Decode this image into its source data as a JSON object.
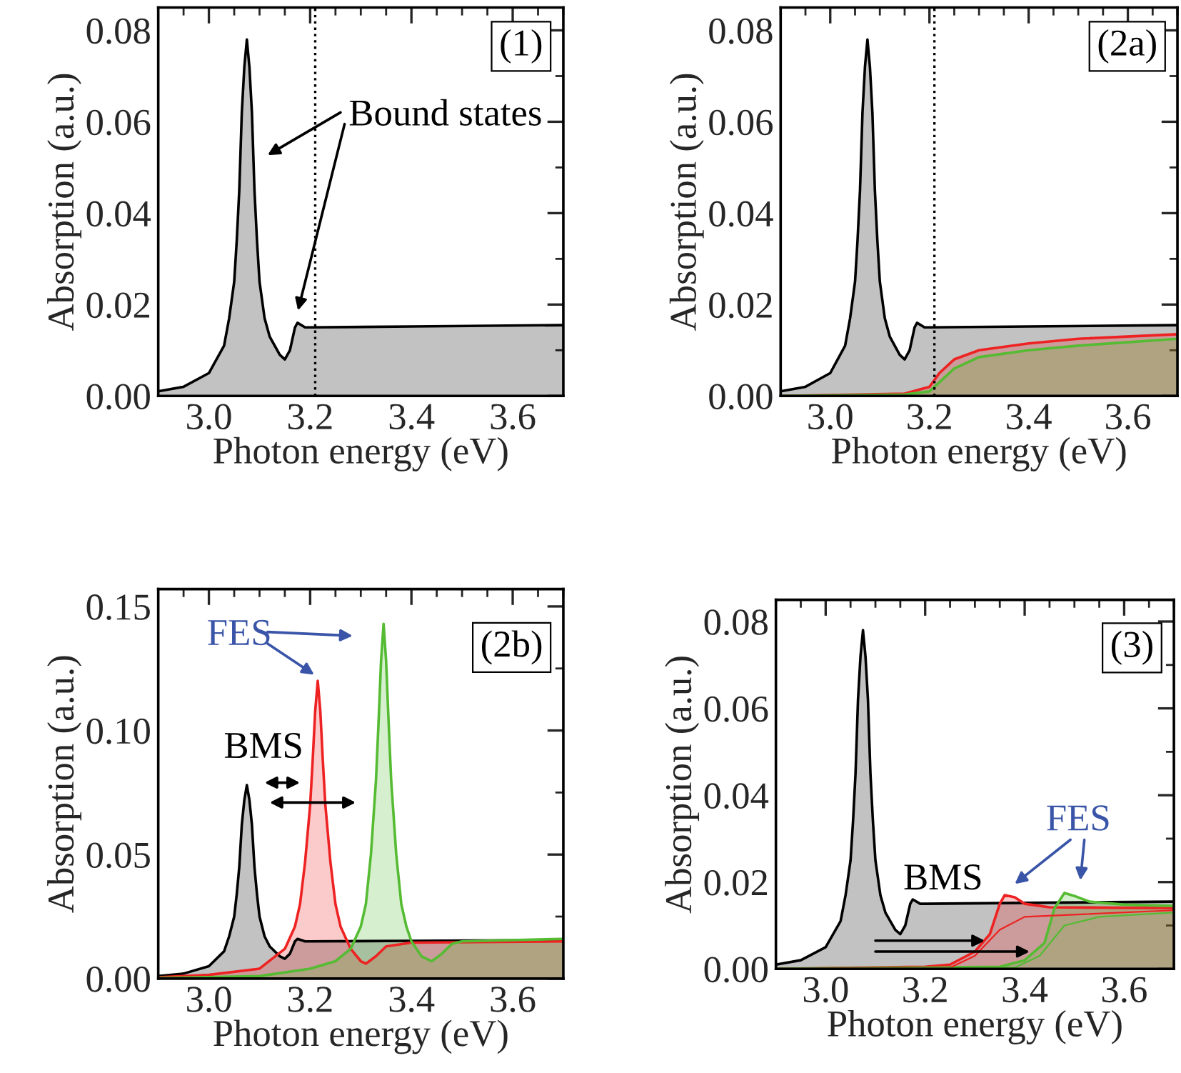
{
  "chart_data": [
    {
      "type": "area",
      "xlabel": "Photon energy (eV)",
      "ylabel": "Absorption (a.u.)",
      "xlim": [
        2.9,
        3.7
      ],
      "ylim": [
        0,
        0.085
      ],
      "xticks": [
        {
          "value": 3.0,
          "label": "3.0"
        },
        {
          "value": 3.2,
          "label": "3.2"
        },
        {
          "value": 3.4,
          "label": "3.4"
        },
        {
          "value": 3.6,
          "label": "3.6"
        }
      ],
      "yticks": [
        {
          "value": 0,
          "label": "0.00"
        },
        {
          "value": 0.02,
          "label": "0.02"
        },
        {
          "value": 0.04,
          "label": "0.04"
        },
        {
          "value": 0.06,
          "label": "0.06"
        },
        {
          "value": 0.08,
          "label": "0.08"
        }
      ],
      "grid": false,
      "legend": false,
      "series": [
        {
          "color": "#000000",
          "x": [
            2.9,
            2.95,
            3.0,
            3.03,
            3.04,
            3.05,
            3.055,
            3.06,
            3.065,
            3.07,
            3.075,
            3.08,
            3.085,
            3.09,
            3.095,
            3.1,
            3.11,
            3.12,
            3.14,
            3.15,
            3.16,
            3.17,
            3.175,
            3.19,
            3.2,
            3.4,
            3.7
          ],
          "values": [
            0.001,
            0.002,
            0.005,
            0.011,
            0.017,
            0.025,
            0.034,
            0.045,
            0.062,
            0.072,
            0.078,
            0.072,
            0.062,
            0.045,
            0.034,
            0.025,
            0.017,
            0.013,
            0.009,
            0.008,
            0.01,
            0.015,
            0.016,
            0.015,
            0.015,
            0.0152,
            0.0155
          ]
        }
      ],
      "ref_lines": [
        {
          "axis": "x",
          "value": 3.21,
          "line_style": "dotted",
          "color": "#000000"
        }
      ],
      "annotations": [
        "(1)",
        "Bound states"
      ]
    },
    {
      "type": "area",
      "xlabel": "Photon energy (eV)",
      "ylabel": "Absorption (a.u.)",
      "xlim": [
        2.9,
        3.7
      ],
      "ylim": [
        0,
        0.085
      ],
      "xticks": [
        {
          "value": 3.0,
          "label": "3.0"
        },
        {
          "value": 3.2,
          "label": "3.2"
        },
        {
          "value": 3.4,
          "label": "3.4"
        },
        {
          "value": 3.6,
          "label": "3.6"
        }
      ],
      "yticks": [
        {
          "value": 0,
          "label": "0.00"
        },
        {
          "value": 0.02,
          "label": "0.02"
        },
        {
          "value": 0.04,
          "label": "0.04"
        },
        {
          "value": 0.06,
          "label": "0.06"
        },
        {
          "value": 0.08,
          "label": "0.08"
        }
      ],
      "grid": false,
      "legend": false,
      "series": [
        {
          "color": "#000000",
          "x": [
            2.9,
            2.95,
            3.0,
            3.03,
            3.04,
            3.05,
            3.055,
            3.06,
            3.065,
            3.07,
            3.075,
            3.08,
            3.085,
            3.09,
            3.095,
            3.1,
            3.11,
            3.12,
            3.14,
            3.15,
            3.16,
            3.17,
            3.175,
            3.19,
            3.2,
            3.4,
            3.7
          ],
          "values": [
            0.001,
            0.002,
            0.005,
            0.011,
            0.017,
            0.025,
            0.034,
            0.045,
            0.062,
            0.072,
            0.078,
            0.072,
            0.062,
            0.045,
            0.034,
            0.025,
            0.017,
            0.013,
            0.009,
            0.008,
            0.01,
            0.015,
            0.016,
            0.015,
            0.015,
            0.0152,
            0.0155
          ]
        },
        {
          "color": "#ee2222",
          "x": [
            2.9,
            3.15,
            3.2,
            3.22,
            3.25,
            3.3,
            3.4,
            3.5,
            3.7
          ],
          "values": [
            0,
            0.0005,
            0.002,
            0.005,
            0.008,
            0.01,
            0.0115,
            0.0125,
            0.0135
          ]
        },
        {
          "color": "#55bb33",
          "x": [
            2.9,
            3.15,
            3.2,
            3.22,
            3.25,
            3.3,
            3.4,
            3.5,
            3.7
          ],
          "values": [
            0,
            0.0003,
            0.001,
            0.003,
            0.006,
            0.0085,
            0.01,
            0.011,
            0.0125
          ]
        }
      ],
      "ref_lines": [
        {
          "axis": "x",
          "value": 3.21,
          "line_style": "dotted",
          "color": "#000000"
        }
      ],
      "annotations": [
        "(2a)"
      ]
    },
    {
      "type": "area",
      "xlabel": "Photon energy (eV)",
      "ylabel": "Absorption (a.u.)",
      "xlim": [
        2.9,
        3.7
      ],
      "ylim": [
        0,
        0.157
      ],
      "xticks": [
        {
          "value": 3.0,
          "label": "3.0"
        },
        {
          "value": 3.2,
          "label": "3.2"
        },
        {
          "value": 3.4,
          "label": "3.4"
        },
        {
          "value": 3.6,
          "label": "3.6"
        }
      ],
      "yticks": [
        {
          "value": 0,
          "label": "0.00"
        },
        {
          "value": 0.05,
          "label": "0.05"
        },
        {
          "value": 0.1,
          "label": "0.10"
        },
        {
          "value": 0.15,
          "label": "0.15"
        }
      ],
      "grid": false,
      "legend": false,
      "series": [
        {
          "color": "#000000",
          "x": [
            2.9,
            2.95,
            3.0,
            3.03,
            3.04,
            3.05,
            3.055,
            3.06,
            3.065,
            3.07,
            3.075,
            3.08,
            3.085,
            3.09,
            3.095,
            3.1,
            3.11,
            3.12,
            3.14,
            3.15,
            3.16,
            3.17,
            3.175,
            3.19,
            3.2,
            3.4,
            3.7
          ],
          "values": [
            0.001,
            0.002,
            0.005,
            0.011,
            0.017,
            0.025,
            0.034,
            0.045,
            0.062,
            0.072,
            0.078,
            0.072,
            0.062,
            0.045,
            0.034,
            0.025,
            0.017,
            0.013,
            0.009,
            0.008,
            0.01,
            0.015,
            0.016,
            0.015,
            0.015,
            0.0152,
            0.0155
          ]
        },
        {
          "color": "#ee2222",
          "x": [
            2.9,
            3.0,
            3.1,
            3.15,
            3.17,
            3.18,
            3.19,
            3.2,
            3.205,
            3.21,
            3.215,
            3.22,
            3.225,
            3.23,
            3.24,
            3.25,
            3.26,
            3.28,
            3.3,
            3.31,
            3.33,
            3.35,
            3.4,
            3.7
          ],
          "values": [
            0.0005,
            0.0015,
            0.004,
            0.012,
            0.021,
            0.03,
            0.047,
            0.07,
            0.088,
            0.108,
            0.12,
            0.108,
            0.088,
            0.07,
            0.047,
            0.03,
            0.021,
            0.012,
            0.007,
            0.006,
            0.009,
            0.013,
            0.0145,
            0.015
          ]
        },
        {
          "color": "#55bb33",
          "x": [
            2.9,
            3.1,
            3.2,
            3.25,
            3.28,
            3.3,
            3.31,
            3.32,
            3.33,
            3.335,
            3.34,
            3.345,
            3.35,
            3.355,
            3.36,
            3.37,
            3.38,
            3.39,
            3.4,
            3.42,
            3.44,
            3.46,
            3.48,
            3.5,
            3.7
          ],
          "values": [
            0.0002,
            0.001,
            0.004,
            0.007,
            0.012,
            0.021,
            0.03,
            0.05,
            0.08,
            0.103,
            0.128,
            0.143,
            0.128,
            0.103,
            0.08,
            0.05,
            0.03,
            0.021,
            0.015,
            0.009,
            0.007,
            0.01,
            0.014,
            0.015,
            0.016
          ]
        }
      ],
      "annotations": [
        "(2b)",
        "FES",
        "BMS"
      ]
    },
    {
      "type": "area",
      "xlabel": "Photon energy (eV)",
      "ylabel": "Absorption (a.u.)",
      "xlim": [
        2.9,
        3.7
      ],
      "ylim": [
        0,
        0.085
      ],
      "xticks": [
        {
          "value": 3.0,
          "label": "3.0"
        },
        {
          "value": 3.2,
          "label": "3.2"
        },
        {
          "value": 3.4,
          "label": "3.4"
        },
        {
          "value": 3.6,
          "label": "3.6"
        }
      ],
      "yticks": [
        {
          "value": 0,
          "label": "0.00"
        },
        {
          "value": 0.02,
          "label": "0.02"
        },
        {
          "value": 0.04,
          "label": "0.04"
        },
        {
          "value": 0.06,
          "label": "0.06"
        },
        {
          "value": 0.08,
          "label": "0.08"
        }
      ],
      "grid": false,
      "legend": false,
      "series": [
        {
          "color": "#000000",
          "x": [
            2.9,
            2.95,
            3.0,
            3.03,
            3.04,
            3.05,
            3.055,
            3.06,
            3.065,
            3.07,
            3.075,
            3.08,
            3.085,
            3.09,
            3.095,
            3.1,
            3.11,
            3.12,
            3.14,
            3.15,
            3.16,
            3.17,
            3.175,
            3.19,
            3.2,
            3.4,
            3.7
          ],
          "values": [
            0.001,
            0.002,
            0.005,
            0.011,
            0.017,
            0.025,
            0.034,
            0.045,
            0.062,
            0.072,
            0.078,
            0.072,
            0.062,
            0.045,
            0.034,
            0.025,
            0.017,
            0.013,
            0.009,
            0.008,
            0.01,
            0.015,
            0.016,
            0.015,
            0.015,
            0.0152,
            0.0155
          ]
        },
        {
          "color": "#ee2222",
          "x": [
            2.9,
            3.2,
            3.25,
            3.3,
            3.33,
            3.35,
            3.36,
            3.38,
            3.4,
            3.45,
            3.7
          ],
          "values": [
            0,
            0.0005,
            0.001,
            0.004,
            0.008,
            0.015,
            0.017,
            0.0165,
            0.015,
            0.0142,
            0.014
          ]
        },
        {
          "color": "#55bb33",
          "x": [
            2.9,
            3.35,
            3.4,
            3.44,
            3.46,
            3.48,
            3.5,
            3.53,
            3.6,
            3.7
          ],
          "values": [
            0,
            0.0005,
            0.002,
            0.006,
            0.014,
            0.0175,
            0.0168,
            0.0155,
            0.0148,
            0.0145
          ]
        },
        {
          "type": "line",
          "color": "#ee2222",
          "x": [
            2.9,
            3.25,
            3.3,
            3.35,
            3.4,
            3.7
          ],
          "values": [
            0,
            0.0003,
            0.003,
            0.009,
            0.012,
            0.0135
          ]
        },
        {
          "type": "line",
          "color": "#55bb33",
          "x": [
            2.9,
            3.38,
            3.43,
            3.48,
            3.55,
            3.7
          ],
          "values": [
            0,
            0.0003,
            0.003,
            0.01,
            0.012,
            0.013
          ]
        }
      ],
      "annotations": [
        "(3)",
        "BMS",
        "FES"
      ]
    }
  ]
}
